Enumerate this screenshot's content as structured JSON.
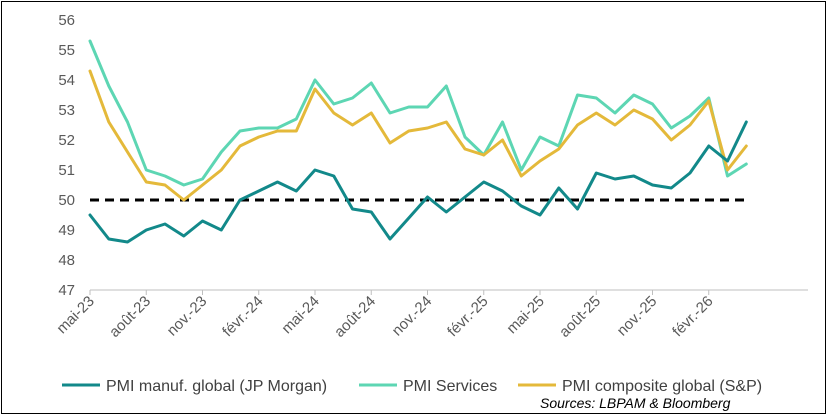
{
  "chart_data": {
    "type": "line",
    "ylim": [
      47,
      56
    ],
    "yticks": [
      47,
      48,
      49,
      50,
      51,
      52,
      53,
      54,
      55,
      56
    ],
    "x_tick_labels": [
      "mai-23",
      "août-23",
      "nov.-23",
      "févr.-24",
      "mai-24",
      "août-24",
      "nov.-24",
      "févr.-25",
      "mai-25",
      "août-25",
      "nov.-25",
      "févr.-26"
    ],
    "x": [
      "mai-23",
      "juin-23",
      "juil.-23",
      "août-23",
      "sept.-23",
      "oct.-23",
      "nov.-23",
      "déc.-23",
      "janv.-24",
      "févr.-24",
      "mars-24",
      "avr.-24",
      "mai-24",
      "juin-24",
      "juil.-24",
      "août-24",
      "sept.-24",
      "oct.-24",
      "nov.-24",
      "déc.-24",
      "janv.-25",
      "févr.-25",
      "mars-25",
      "avr.-25",
      "mai-25",
      "juin-25",
      "juil.-25",
      "août-25",
      "sept.-25",
      "oct.-25",
      "nov.-25",
      "déc.-25",
      "janv.-26",
      "févr.-26",
      "mars-26",
      "avr.-26"
    ],
    "reference_line": 50,
    "series": [
      {
        "name": "PMI manuf. global (JP Morgan)",
        "color": "#12898a",
        "values": [
          49.5,
          48.7,
          48.6,
          49.0,
          49.2,
          48.8,
          49.3,
          49.0,
          50.0,
          50.3,
          50.6,
          50.3,
          51.0,
          50.8,
          49.7,
          49.6,
          48.7,
          49.4,
          50.1,
          49.6,
          50.1,
          50.6,
          50.3,
          49.8,
          49.5,
          50.4,
          49.7,
          50.9,
          50.7,
          50.8,
          50.5,
          50.4,
          50.9,
          51.8,
          51.3,
          52.6
        ]
      },
      {
        "name": "PMI Services",
        "color": "#5dd6b3",
        "values": [
          55.3,
          53.8,
          52.6,
          51.0,
          50.8,
          50.5,
          50.7,
          51.6,
          52.3,
          52.4,
          52.4,
          52.7,
          54.0,
          53.2,
          53.4,
          53.9,
          52.9,
          53.1,
          53.1,
          53.8,
          52.1,
          51.5,
          52.6,
          51.0,
          52.1,
          51.8,
          53.5,
          53.4,
          52.9,
          53.5,
          53.2,
          52.4,
          52.8,
          53.4,
          50.8,
          51.2
        ]
      },
      {
        "name": "PMI composite global (S&P)",
        "color": "#e4b93a",
        "values": [
          54.3,
          52.6,
          51.6,
          50.6,
          50.5,
          50.0,
          50.5,
          51.0,
          51.8,
          52.1,
          52.3,
          52.3,
          53.7,
          52.9,
          52.5,
          52.9,
          51.9,
          52.3,
          52.4,
          52.6,
          51.7,
          51.5,
          52.0,
          50.8,
          51.3,
          51.7,
          52.5,
          52.9,
          52.5,
          53.0,
          52.7,
          52.0,
          52.5,
          53.3,
          51.0,
          51.8
        ]
      }
    ]
  },
  "legend": [
    {
      "label": "PMI manuf. global (JP Morgan)",
      "color": "#12898a"
    },
    {
      "label": "PMI Services",
      "color": "#5dd6b3"
    },
    {
      "label": "PMI composite global (S&P)",
      "color": "#e4b93a"
    }
  ],
  "source": "Sources: LBPAM & Bloomberg"
}
